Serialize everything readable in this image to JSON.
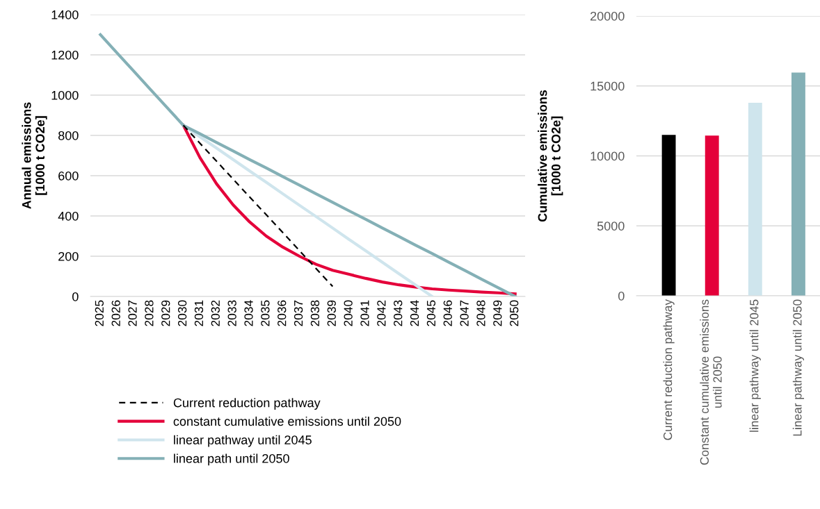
{
  "chart_data": [
    {
      "type": "line",
      "ylabel": "Annual emissions\n[1000 t CO2e]",
      "categories": [
        "2025",
        "2026",
        "2027",
        "2028",
        "2029",
        "2030",
        "2031",
        "2032",
        "2033",
        "2034",
        "2035",
        "2036",
        "2037",
        "2038",
        "2039",
        "2040",
        "2041",
        "2042",
        "2043",
        "2044",
        "2045",
        "2046",
        "2047",
        "2048",
        "2049",
        "2050"
      ],
      "series": [
        {
          "name": "Current reduction pathway",
          "color": "#000000",
          "line_style": "dashed",
          "values": [
            null,
            null,
            null,
            null,
            null,
            850,
            761,
            672,
            583,
            494,
            406,
            317,
            228,
            139,
            50,
            null,
            null,
            null,
            null,
            null,
            null,
            null,
            null,
            null,
            null,
            null
          ]
        },
        {
          "name": "constant cumulative emissions until 2050",
          "color": "#e4003a",
          "values": [
            null,
            null,
            null,
            null,
            null,
            850,
            690,
            560,
            455,
            370,
            300,
            245,
            200,
            160,
            130,
            110,
            90,
            72,
            58,
            47,
            38,
            32,
            27,
            22,
            18,
            13
          ]
        },
        {
          "name": "linear pathway until 2045",
          "color": "#cfe5ed",
          "values": [
            null,
            null,
            null,
            null,
            null,
            850,
            793,
            737,
            680,
            623,
            567,
            510,
            453,
            397,
            340,
            283,
            227,
            170,
            113,
            57,
            0,
            null,
            null,
            null,
            null,
            null
          ]
        },
        {
          "name": "linear path until 2050",
          "color": "#84b0b6",
          "values": [
            1300,
            1210,
            1120,
            1030,
            940,
            850,
            808,
            765,
            723,
            680,
            638,
            595,
            553,
            510,
            468,
            425,
            383,
            340,
            298,
            255,
            213,
            170,
            128,
            85,
            43,
            0
          ]
        }
      ],
      "ylim": [
        0,
        1400
      ],
      "yticks": [
        0,
        200,
        400,
        600,
        800,
        1000,
        1200,
        1400
      ],
      "grid": "y",
      "legend": "bottom",
      "marker": "none"
    },
    {
      "type": "bar",
      "ylabel": "Cumulative emissions\n[1000 t CO2e]",
      "categories": [
        "Current reduction pathway",
        "Constant cumulative emissions\nuntil 2050",
        "linear pathway until 2045",
        "Linear pathway until 2050"
      ],
      "values": [
        11500,
        11450,
        13800,
        15950
      ],
      "colors": [
        "#000000",
        "#e4003a",
        "#cfe5ed",
        "#84b0b6"
      ],
      "ylim": [
        0,
        20000
      ],
      "yticks": [
        0,
        5000,
        10000,
        15000,
        20000
      ],
      "grid": "y"
    }
  ]
}
